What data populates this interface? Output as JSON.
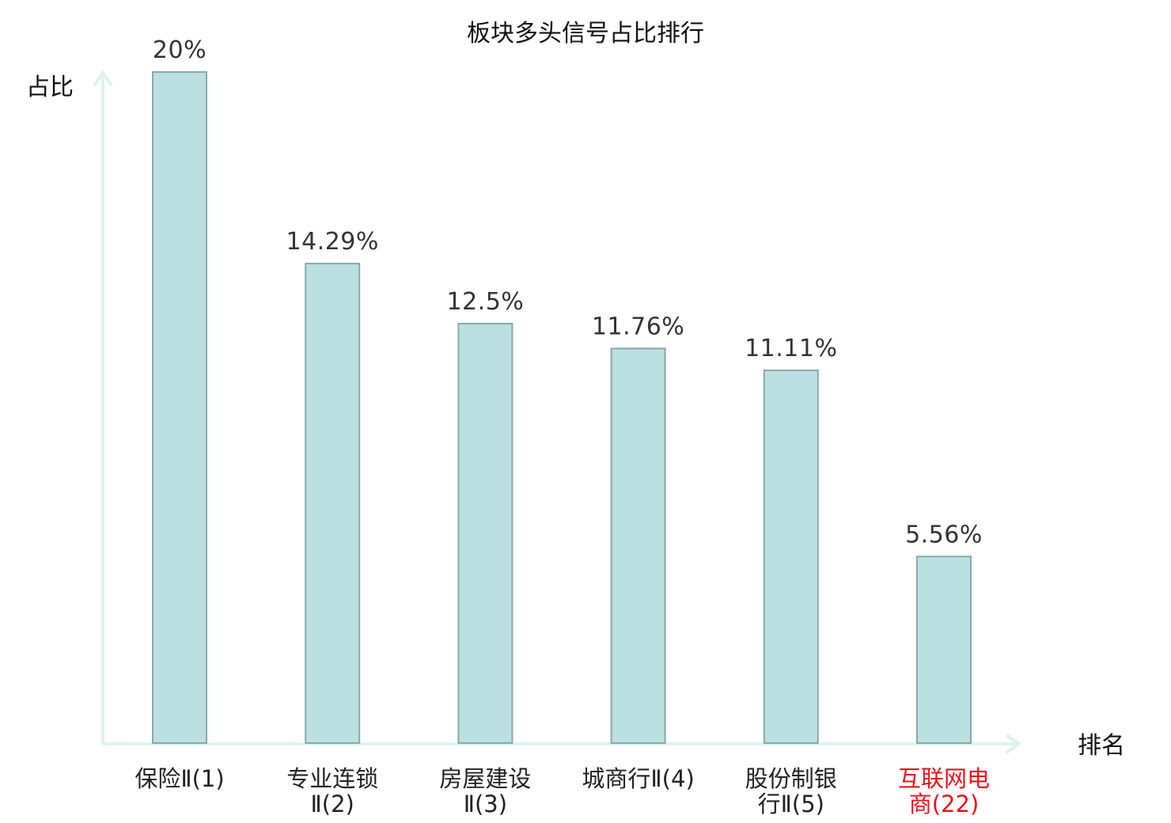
{
  "chart_data": {
    "type": "bar",
    "title": "板块多头信号占比排行",
    "ylabel": "占比",
    "xlabel": "排名",
    "ylim": [
      0,
      20
    ],
    "grid": false,
    "categories": [
      [
        "保险Ⅱ(1)"
      ],
      [
        "专业连锁",
        "Ⅱ(2)"
      ],
      [
        "房屋建设",
        "Ⅱ(3)"
      ],
      [
        "城商行Ⅱ(4)"
      ],
      [
        "股份制银",
        "行Ⅱ(5)"
      ],
      [
        "互联网电",
        "商(22)"
      ]
    ],
    "values": [
      20,
      14.29,
      12.5,
      11.76,
      11.11,
      5.56
    ],
    "value_labels": [
      "20%",
      "14.29%",
      "12.5%",
      "11.76%",
      "11.11%",
      "5.56%"
    ],
    "highlight_index": 5,
    "colors": {
      "bar_fill": "#bce0e2",
      "bar_stroke": "#8aa8aa",
      "axis": "#dff2ef",
      "highlight_text": "#e5131d",
      "text": "#222222"
    }
  }
}
